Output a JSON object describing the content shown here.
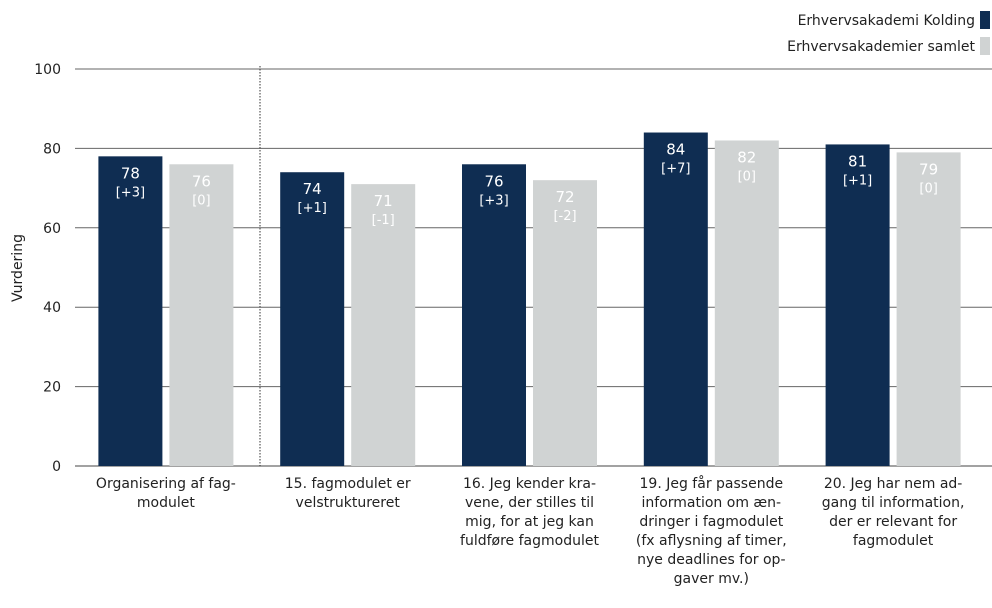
{
  "chart_data": {
    "type": "bar",
    "ylabel": "Vurdering",
    "xlabel": "",
    "ylim": [
      0,
      100
    ],
    "yticks": [
      "0",
      "20",
      "40",
      "60",
      "80",
      "100"
    ],
    "legend_position": "top-right",
    "grid": true,
    "categories": [
      [
        "Organisering af fag-",
        "modulet"
      ],
      [
        "15. fagmodulet er",
        "velstruktureret"
      ],
      [
        "16. Jeg kender kra-",
        "vene, der stilles til",
        "mig, for at jeg kan",
        "fuldføre fagmodulet"
      ],
      [
        "19. Jeg får passende",
        "information om æn-",
        "dringer i fagmodulet",
        "(fx aflysning af timer,",
        "nye deadlines for op-",
        "gaver mv.)"
      ],
      [
        "20. Jeg har nem ad-",
        "gang til information,",
        "der er relevant for",
        "fagmodulet"
      ]
    ],
    "series": [
      {
        "name": "Erhvervsakademi Kolding",
        "color": "#0f2d52",
        "values": [
          78,
          74,
          76,
          84,
          81
        ],
        "value_labels": [
          "78",
          "74",
          "76",
          "84",
          "81"
        ],
        "delta_labels": [
          "[+3]",
          "[+1]",
          "[+3]",
          "[+7]",
          "[+1]"
        ],
        "label_color": "#ffffff"
      },
      {
        "name": "Erhvervsakademier samlet",
        "color": "#d0d3d3",
        "values": [
          76,
          71,
          72,
          82,
          79
        ],
        "value_labels": [
          "76",
          "71",
          "72",
          "82",
          "79"
        ],
        "delta_labels": [
          "[0]",
          "[-1]",
          "[-2]",
          "[0]",
          "[0]"
        ],
        "label_color": "#ffffff"
      }
    ]
  }
}
